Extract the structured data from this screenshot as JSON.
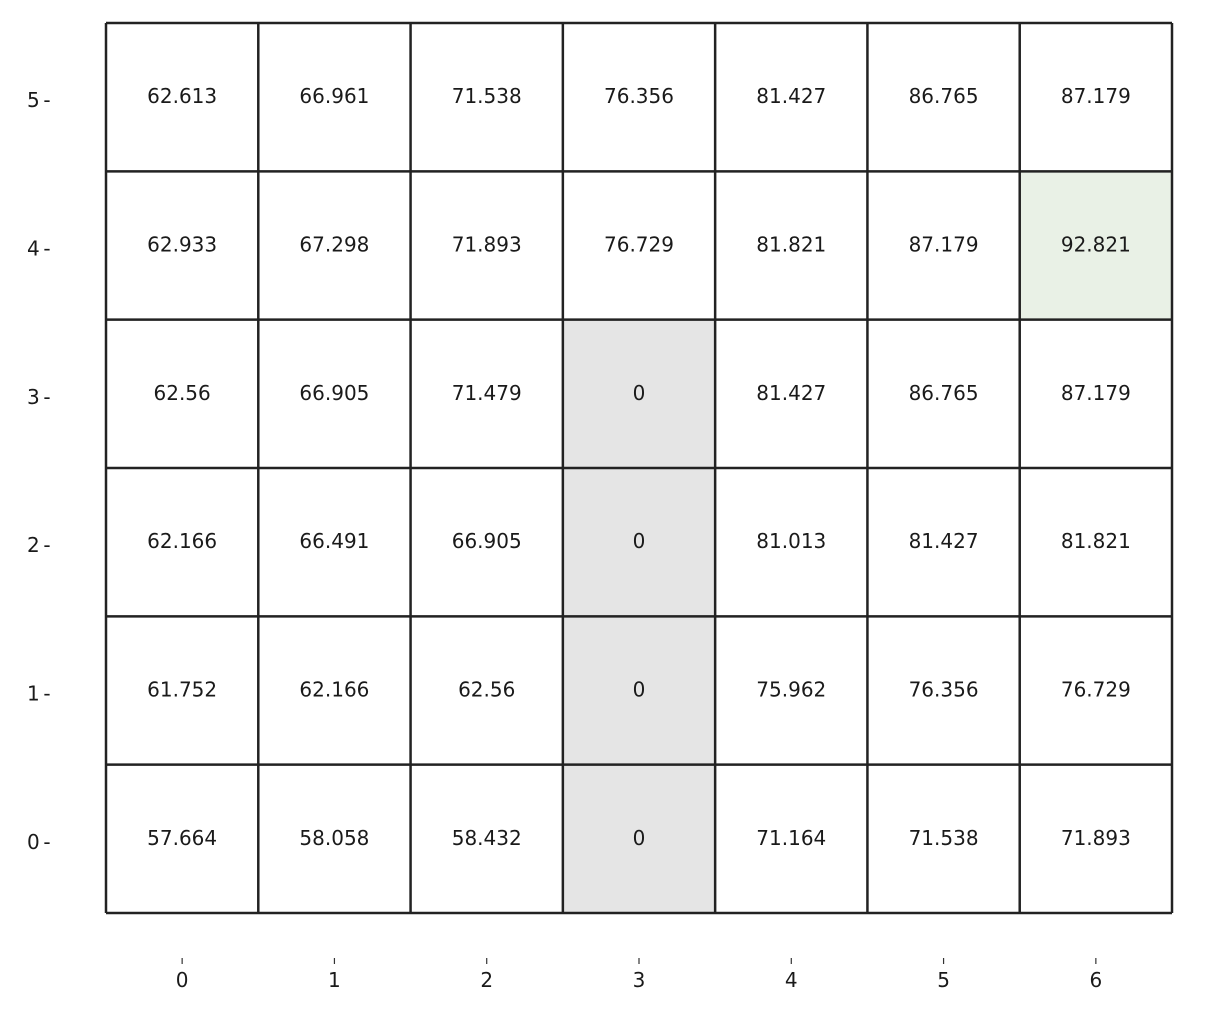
{
  "chart_data": {
    "type": "heatmap",
    "title": "",
    "xlabel": "",
    "ylabel": "",
    "x_ticks": [
      "0",
      "1",
      "2",
      "3",
      "4",
      "5",
      "6"
    ],
    "y_ticks": [
      "0",
      "1",
      "2",
      "3",
      "4",
      "5"
    ],
    "y_tick_suffix": " -",
    "rows": [
      {
        "y": 5,
        "values": [
          "62.613",
          "66.961",
          "71.538",
          "76.356",
          "81.427",
          "86.765",
          "87.179"
        ]
      },
      {
        "y": 4,
        "values": [
          "62.933",
          "67.298",
          "71.893",
          "76.729",
          "81.821",
          "87.179",
          "92.821"
        ]
      },
      {
        "y": 3,
        "values": [
          "62.56",
          "66.905",
          "71.479",
          "0",
          "81.427",
          "86.765",
          "87.179"
        ]
      },
      {
        "y": 2,
        "values": [
          "62.166",
          "66.491",
          "66.905",
          "0",
          "81.013",
          "81.427",
          "81.821"
        ]
      },
      {
        "y": 1,
        "values": [
          "61.752",
          "62.166",
          "62.56",
          "0",
          "75.962",
          "76.356",
          "76.729"
        ]
      },
      {
        "y": 0,
        "values": [
          "57.664",
          "58.058",
          "58.432",
          "0",
          "71.164",
          "71.538",
          "71.893"
        ]
      }
    ],
    "obstacle_cells": [
      [
        3,
        3
      ],
      [
        3,
        2
      ],
      [
        3,
        1
      ],
      [
        3,
        0
      ]
    ],
    "goal_cells": [
      [
        6,
        4
      ]
    ],
    "colors": {
      "background": "#ffffff",
      "obstacle": "#e5e5e5",
      "goal": "#e9f1e6",
      "grid_line": "#222222",
      "text": "#1a1a1a"
    },
    "grid": true
  }
}
